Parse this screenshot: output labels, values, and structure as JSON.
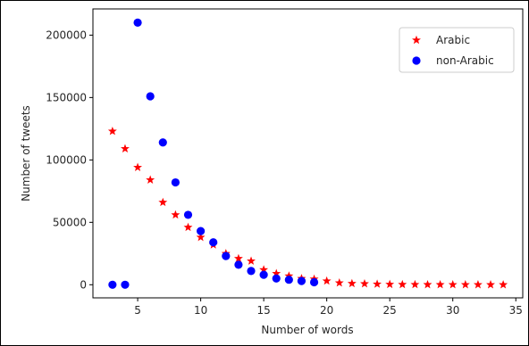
{
  "chart_data": {
    "type": "scatter",
    "title": "",
    "xlabel": "Number of words",
    "ylabel": "Number of tweets",
    "xlim": [
      1.45,
      35.55
    ],
    "ylim": [
      -10500,
      221000
    ],
    "x_ticks": [
      5,
      10,
      15,
      20,
      25,
      30,
      35
    ],
    "y_ticks": [
      0,
      50000,
      100000,
      150000,
      200000
    ],
    "y_tick_labels": [
      "0",
      "50000",
      "100000",
      "150000",
      "200000"
    ],
    "grid": false,
    "legend_position": "upper right",
    "series": [
      {
        "name": "Arabic",
        "marker": "star",
        "color": "#ff0000",
        "x": [
          3,
          4,
          5,
          6,
          7,
          8,
          9,
          10,
          11,
          12,
          13,
          14,
          15,
          16,
          17,
          18,
          19,
          20,
          21,
          22,
          23,
          24,
          25,
          26,
          27,
          28,
          29,
          30,
          31,
          32,
          33,
          34
        ],
        "y": [
          123000,
          109000,
          94000,
          84000,
          66000,
          56000,
          46000,
          38000,
          32000,
          25000,
          21000,
          19000,
          12000,
          9000,
          7000,
          5000,
          4500,
          3000,
          1500,
          1000,
          800,
          500,
          300,
          200,
          150,
          100,
          80,
          60,
          50,
          40,
          30,
          20
        ]
      },
      {
        "name": "non-Arabic",
        "marker": "circle",
        "color": "#0000ff",
        "x": [
          3,
          4,
          5,
          6,
          7,
          8,
          9,
          10,
          11,
          12,
          13,
          14,
          15,
          16,
          17,
          18,
          19
        ],
        "y": [
          0,
          0,
          210000,
          151000,
          114000,
          82000,
          56000,
          43000,
          34000,
          23000,
          16000,
          11000,
          8000,
          5000,
          4000,
          3000,
          2000
        ]
      }
    ]
  }
}
